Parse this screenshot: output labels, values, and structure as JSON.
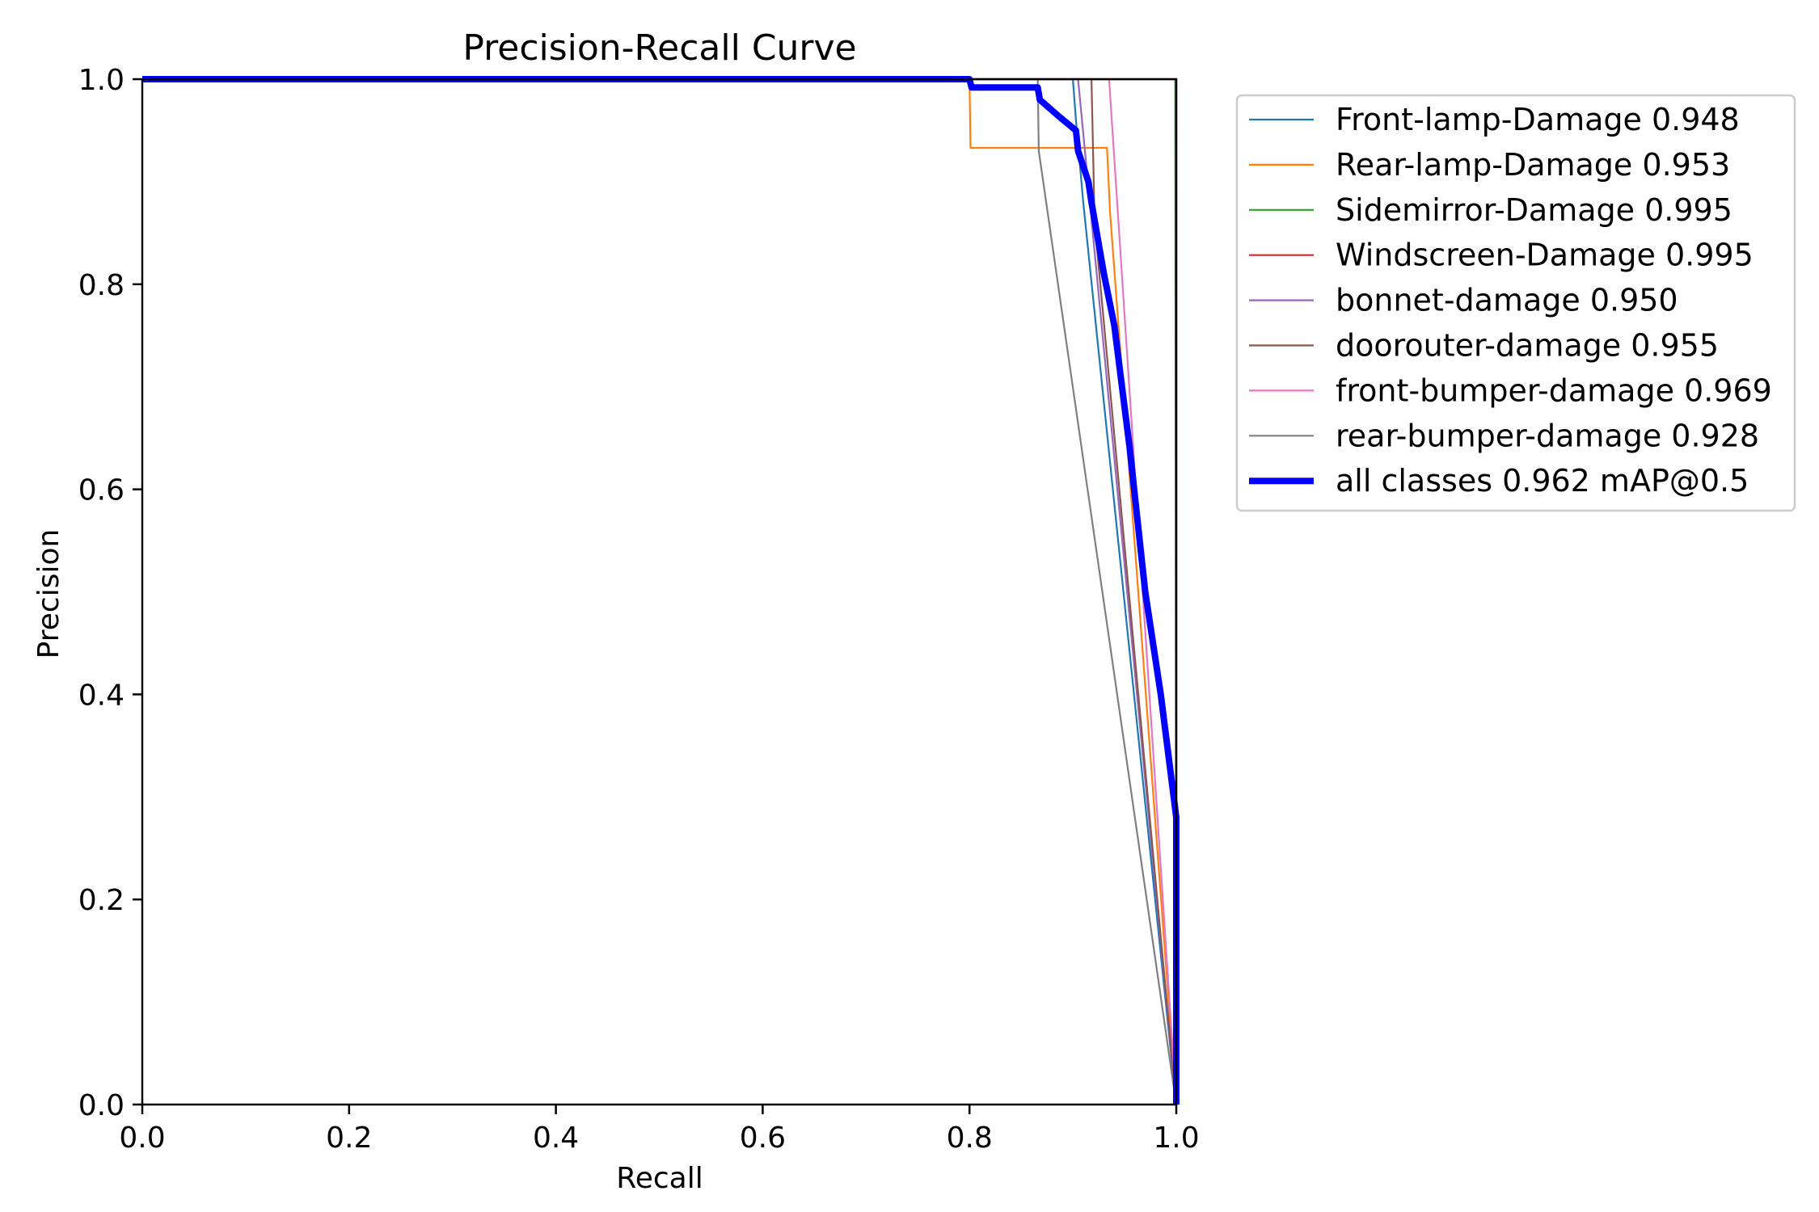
{
  "chart_data": {
    "type": "line",
    "title": "Precision-Recall Curve",
    "xlabel": "Recall",
    "ylabel": "Precision",
    "xlim": [
      0,
      1
    ],
    "ylim": [
      0,
      1
    ],
    "x_ticks": [
      "0.0",
      "0.2",
      "0.4",
      "0.6",
      "0.8",
      "1.0"
    ],
    "y_ticks": [
      "0.0",
      "0.2",
      "0.4",
      "0.6",
      "0.8",
      "1.0"
    ],
    "grid": false,
    "legend_position": "outside-right-top",
    "series": [
      {
        "name": "Front-lamp-Damage 0.948",
        "color": "#1f77b4",
        "points": [
          [
            0,
            1
          ],
          [
            0.9,
            1
          ],
          [
            0.903,
            0.96
          ],
          [
            0.91,
            0.88
          ],
          [
            1.0,
            0.0
          ]
        ]
      },
      {
        "name": "Rear-lamp-Damage 0.953",
        "color": "#ff7f0e",
        "points": [
          [
            0,
            1
          ],
          [
            0.8,
            1
          ],
          [
            0.801,
            0.933
          ],
          [
            0.933,
            0.933
          ],
          [
            0.936,
            0.87
          ],
          [
            1.0,
            0.0
          ]
        ]
      },
      {
        "name": "Sidemirror-Damage 0.995",
        "color": "#2ca02c",
        "points": [
          [
            0,
            1
          ],
          [
            0.999,
            1
          ],
          [
            1.0,
            0.0
          ]
        ]
      },
      {
        "name": "Windscreen-Damage 0.995",
        "color": "#d62728",
        "points": [
          [
            0,
            1
          ],
          [
            1.0,
            1
          ],
          [
            1.0,
            0.0
          ]
        ]
      },
      {
        "name": "bonnet-damage 0.950",
        "color": "#9467bd",
        "points": [
          [
            0,
            1
          ],
          [
            0.905,
            1
          ],
          [
            1.0,
            0.0
          ]
        ]
      },
      {
        "name": "doorouter-damage 0.955",
        "color": "#8c564b",
        "points": [
          [
            0,
            1
          ],
          [
            0.918,
            1
          ],
          [
            0.921,
            0.86
          ],
          [
            1.0,
            0.0
          ]
        ]
      },
      {
        "name": "front-bumper-damage 0.969",
        "color": "#e377c2",
        "points": [
          [
            0,
            1
          ],
          [
            0.935,
            1
          ],
          [
            1.0,
            0.0
          ]
        ]
      },
      {
        "name": "rear-bumper-damage 0.928",
        "color": "#7f7f7f",
        "points": [
          [
            0,
            1
          ],
          [
            0.866,
            1
          ],
          [
            0.867,
            0.93
          ],
          [
            1.0,
            0.0
          ]
        ]
      },
      {
        "name": "all classes 0.962 mAP@0.5",
        "color": "#0000ff",
        "width": "thick",
        "points": [
          [
            0,
            1
          ],
          [
            0.8,
            1
          ],
          [
            0.802,
            0.992
          ],
          [
            0.866,
            0.992
          ],
          [
            0.868,
            0.98
          ],
          [
            0.885,
            0.965
          ],
          [
            0.903,
            0.95
          ],
          [
            0.905,
            0.93
          ],
          [
            0.915,
            0.9
          ],
          [
            0.918,
            0.88
          ],
          [
            0.93,
            0.81
          ],
          [
            0.94,
            0.76
          ],
          [
            0.955,
            0.64
          ],
          [
            0.97,
            0.5
          ],
          [
            0.985,
            0.4
          ],
          [
            1.0,
            0.28
          ],
          [
            1.0,
            0.0
          ]
        ]
      }
    ]
  }
}
